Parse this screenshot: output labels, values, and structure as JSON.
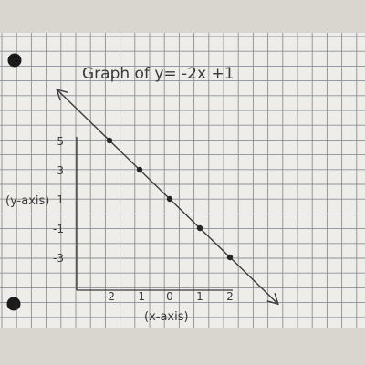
{
  "chart_data": {
    "type": "line",
    "title": "Graph of y= -2x +1",
    "xlabel": "(x-axis)",
    "ylabel": "(y-axis)",
    "x_ticks": [
      "-2",
      "-1",
      "0",
      "1",
      "2"
    ],
    "y_ticks": [
      "5",
      "3",
      "1",
      "-1",
      "-3"
    ],
    "series": [
      {
        "x": [
          -2,
          -1,
          0,
          1,
          2
        ],
        "y": [
          5,
          3,
          1,
          -1,
          -3
        ]
      }
    ],
    "grid": true,
    "colors": {
      "paper": "#eeede9",
      "grid": "#8a8f98",
      "ink": "#3a3a3a",
      "background": "#d9d6d0"
    }
  }
}
